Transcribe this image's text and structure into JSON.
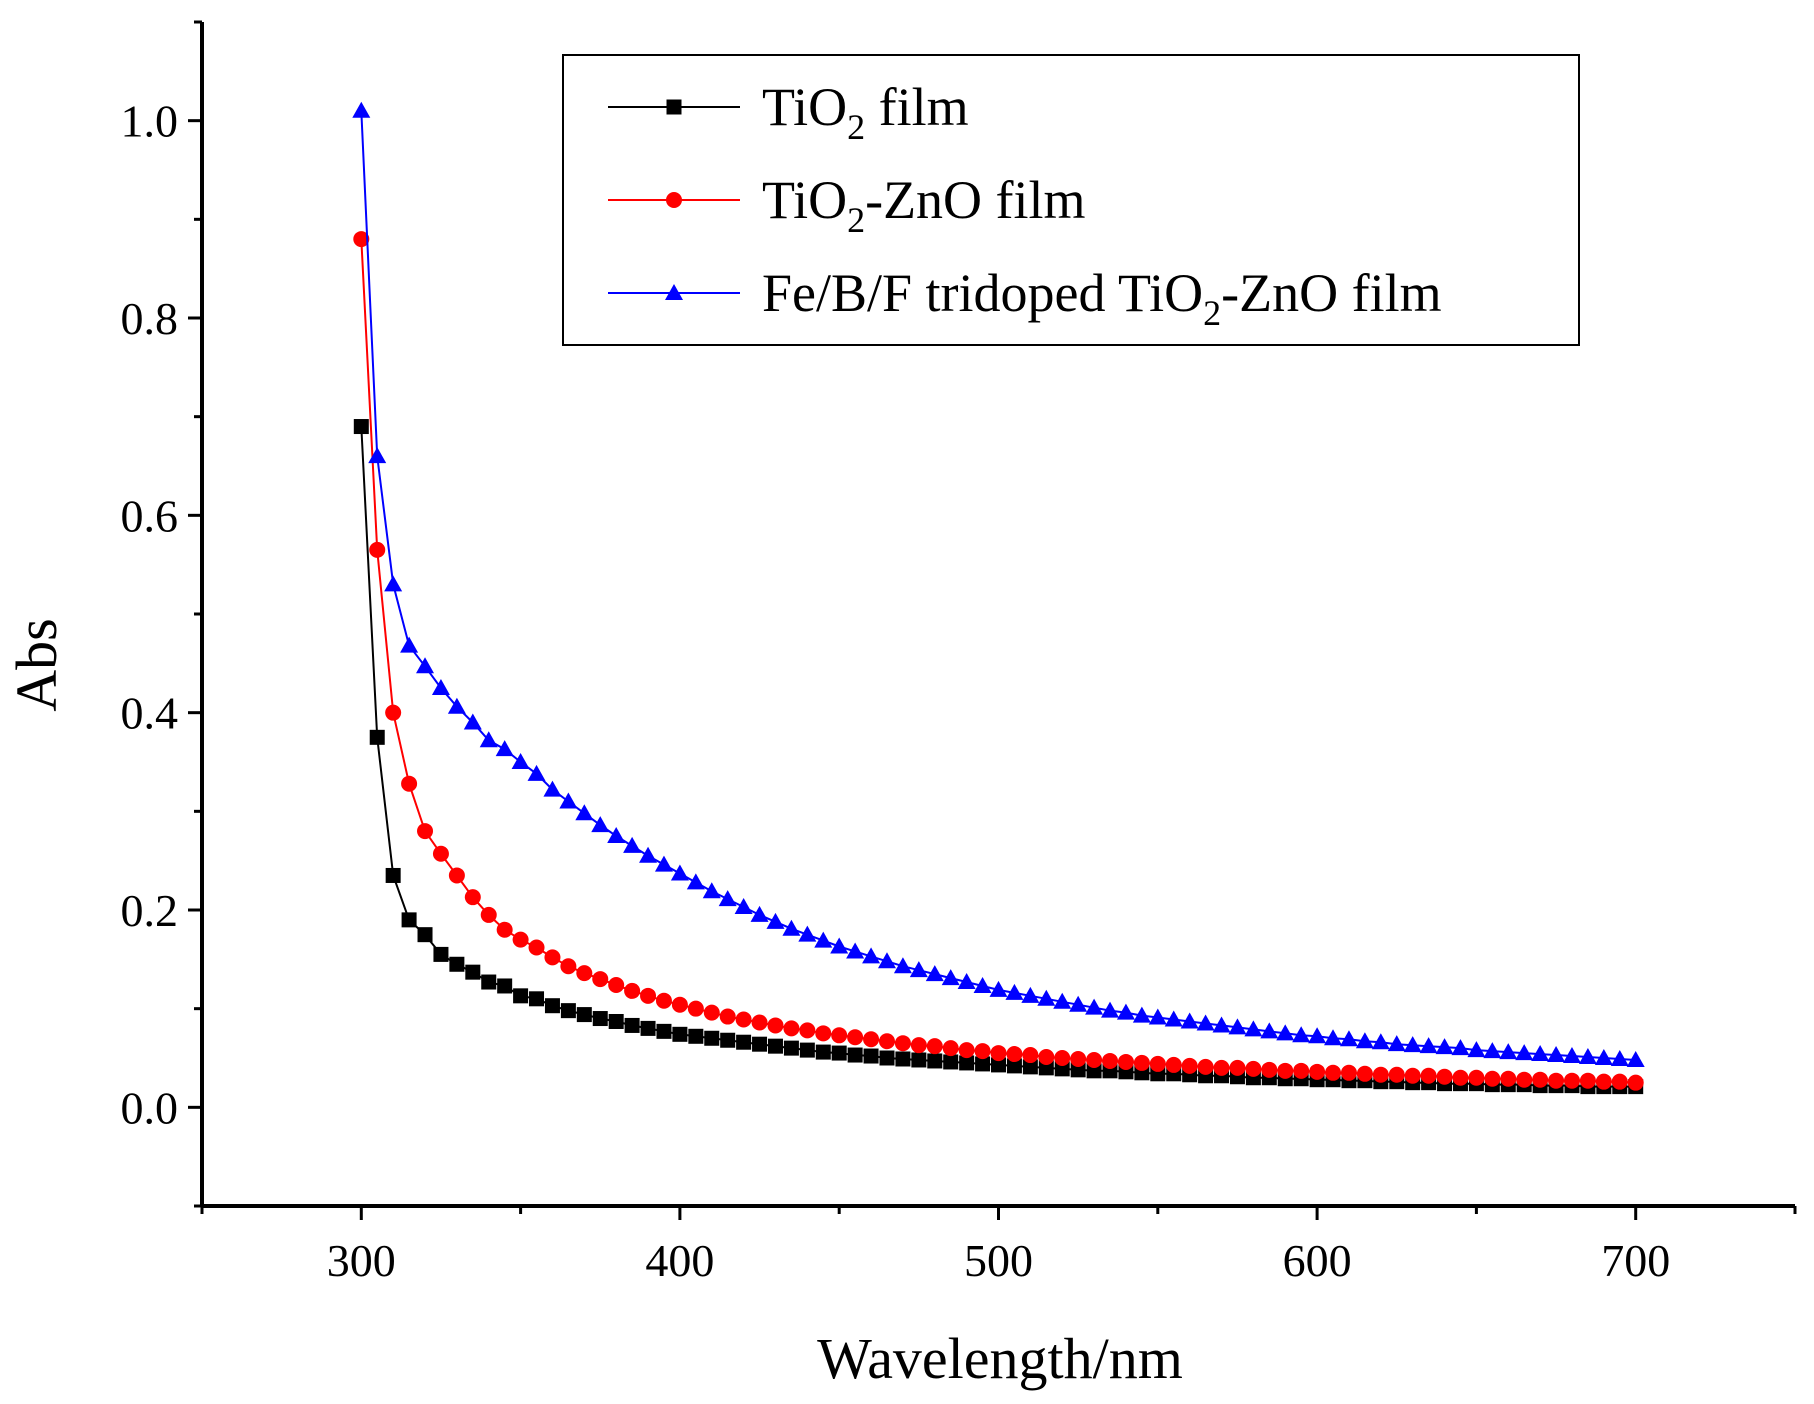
{
  "chart_data": {
    "type": "line",
    "title": "",
    "xlabel": "Wavelength/nm",
    "ylabel": "Abs",
    "xlim": [
      250,
      750
    ],
    "ylim": [
      -0.1,
      1.1
    ],
    "x_ticks": [
      300,
      400,
      500,
      600,
      700
    ],
    "y_ticks": [
      0.0,
      0.2,
      0.4,
      0.6,
      0.8,
      1.0
    ],
    "x_tick_labels": [
      "300",
      "400",
      "500",
      "600",
      "700"
    ],
    "y_tick_labels": [
      "0.0",
      "0.2",
      "0.4",
      "0.6",
      "0.8",
      "1.0"
    ],
    "grid": false,
    "legend_position": "top-right",
    "legend": [
      {
        "pre": "TiO",
        "sub": "2",
        "post": " film"
      },
      {
        "pre": "TiO",
        "sub": "2",
        "post": "-ZnO film"
      },
      {
        "pre": "Fe/B/F tridoped TiO",
        "sub": "2",
        "post": "-ZnO film"
      }
    ],
    "x_step": 5,
    "series": [
      {
        "name": "TiO2 film",
        "color": "#000000",
        "marker": "square",
        "x_start": 300,
        "values": [
          0.69,
          0.375,
          0.235,
          0.19,
          0.175,
          0.155,
          0.145,
          0.137,
          0.127,
          0.123,
          0.113,
          0.11,
          0.103,
          0.098,
          0.094,
          0.09,
          0.087,
          0.083,
          0.08,
          0.077,
          0.074,
          0.072,
          0.07,
          0.068,
          0.066,
          0.064,
          0.062,
          0.06,
          0.058,
          0.056,
          0.055,
          0.053,
          0.052,
          0.05,
          0.049,
          0.048,
          0.047,
          0.046,
          0.045,
          0.044,
          0.043,
          0.042,
          0.041,
          0.04,
          0.039,
          0.038,
          0.037,
          0.037,
          0.036,
          0.035,
          0.034,
          0.034,
          0.033,
          0.032,
          0.032,
          0.031,
          0.03,
          0.03,
          0.029,
          0.029,
          0.028,
          0.028,
          0.027,
          0.027,
          0.026,
          0.026,
          0.025,
          0.025,
          0.024,
          0.024,
          0.024,
          0.023,
          0.023,
          0.023,
          0.022,
          0.022,
          0.022,
          0.021,
          0.021,
          0.021,
          0.021
        ]
      },
      {
        "name": "TiO2-ZnO film",
        "color": "#ff0000",
        "marker": "circle",
        "x_start": 300,
        "values": [
          0.88,
          0.565,
          0.4,
          0.328,
          0.28,
          0.257,
          0.235,
          0.213,
          0.195,
          0.18,
          0.17,
          0.162,
          0.152,
          0.143,
          0.136,
          0.13,
          0.124,
          0.118,
          0.113,
          0.108,
          0.104,
          0.1,
          0.096,
          0.092,
          0.089,
          0.086,
          0.083,
          0.08,
          0.078,
          0.075,
          0.073,
          0.071,
          0.069,
          0.067,
          0.065,
          0.063,
          0.062,
          0.06,
          0.058,
          0.057,
          0.055,
          0.054,
          0.053,
          0.051,
          0.05,
          0.049,
          0.048,
          0.047,
          0.046,
          0.045,
          0.044,
          0.043,
          0.042,
          0.041,
          0.04,
          0.04,
          0.039,
          0.038,
          0.037,
          0.037,
          0.036,
          0.035,
          0.035,
          0.034,
          0.033,
          0.033,
          0.032,
          0.032,
          0.031,
          0.03,
          0.03,
          0.029,
          0.029,
          0.028,
          0.028,
          0.027,
          0.027,
          0.027,
          0.026,
          0.026,
          0.025
        ]
      },
      {
        "name": "Fe/B/F tridoped TiO2-ZnO film",
        "color": "#0000ff",
        "marker": "triangle",
        "x_start": 300,
        "values": [
          1.01,
          0.66,
          0.53,
          0.468,
          0.447,
          0.425,
          0.406,
          0.39,
          0.372,
          0.363,
          0.35,
          0.338,
          0.322,
          0.31,
          0.298,
          0.286,
          0.275,
          0.265,
          0.255,
          0.246,
          0.237,
          0.228,
          0.219,
          0.211,
          0.203,
          0.195,
          0.188,
          0.181,
          0.175,
          0.169,
          0.163,
          0.158,
          0.153,
          0.148,
          0.143,
          0.139,
          0.135,
          0.131,
          0.127,
          0.123,
          0.119,
          0.116,
          0.113,
          0.11,
          0.107,
          0.104,
          0.101,
          0.098,
          0.096,
          0.093,
          0.091,
          0.089,
          0.087,
          0.085,
          0.083,
          0.081,
          0.079,
          0.077,
          0.075,
          0.073,
          0.072,
          0.07,
          0.069,
          0.067,
          0.066,
          0.064,
          0.063,
          0.062,
          0.061,
          0.06,
          0.058,
          0.057,
          0.056,
          0.055,
          0.054,
          0.053,
          0.052,
          0.051,
          0.05,
          0.049,
          0.048
        ]
      }
    ]
  }
}
